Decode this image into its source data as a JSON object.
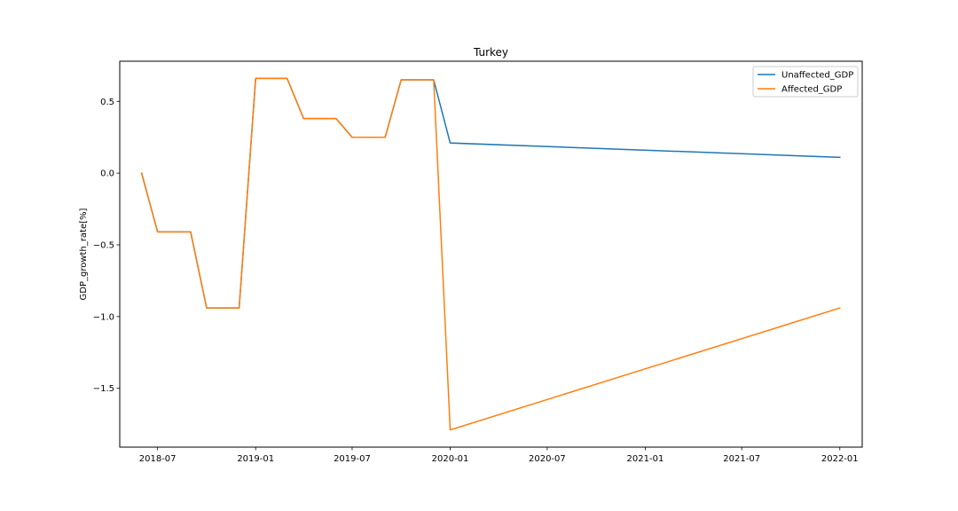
{
  "chart_data": {
    "type": "line",
    "title": "Turkey",
    "xlabel": "",
    "ylabel": "GDP_growth_rate[%]",
    "xlim": [
      "2018-04-21",
      "2022-02-12"
    ],
    "ylim": [
      -1.91,
      0.78
    ],
    "grid": false,
    "legend_position": "top-right",
    "x_ticks": [
      "2018-07",
      "2019-01",
      "2019-07",
      "2020-01",
      "2020-07",
      "2021-01",
      "2021-07",
      "2022-01"
    ],
    "y_ticks": [
      0.5,
      0.0,
      -0.5,
      -1.0,
      -1.5
    ],
    "y_tick_labels": [
      "0.5",
      "0.0",
      "−0.5",
      "−1.0",
      "−1.5"
    ],
    "series": [
      {
        "name": "Unaffected_GDP",
        "color": "#1f77b4",
        "x": [
          "2018-06-01",
          "2018-07-01",
          "2018-09-01",
          "2018-10-01",
          "2018-12-01",
          "2019-01-01",
          "2019-03-01",
          "2019-04-01",
          "2019-06-01",
          "2019-07-01",
          "2019-09-01",
          "2019-10-01",
          "2019-12-01",
          "2020-01-01",
          "2022-01-01"
        ],
        "values": [
          0.0,
          -0.41,
          -0.41,
          -0.94,
          -0.94,
          0.66,
          0.66,
          0.38,
          0.38,
          0.25,
          0.25,
          0.65,
          0.65,
          0.21,
          0.11
        ]
      },
      {
        "name": "Affected_GDP",
        "color": "#ff7f0e",
        "x": [
          "2018-06-01",
          "2018-07-01",
          "2018-09-01",
          "2018-10-01",
          "2018-12-01",
          "2019-01-01",
          "2019-03-01",
          "2019-04-01",
          "2019-06-01",
          "2019-07-01",
          "2019-09-01",
          "2019-10-01",
          "2019-12-01",
          "2020-01-01",
          "2022-01-01"
        ],
        "values": [
          0.0,
          -0.41,
          -0.41,
          -0.94,
          -0.94,
          0.66,
          0.66,
          0.38,
          0.38,
          0.25,
          0.25,
          0.65,
          0.65,
          -1.79,
          -0.94
        ]
      }
    ]
  }
}
